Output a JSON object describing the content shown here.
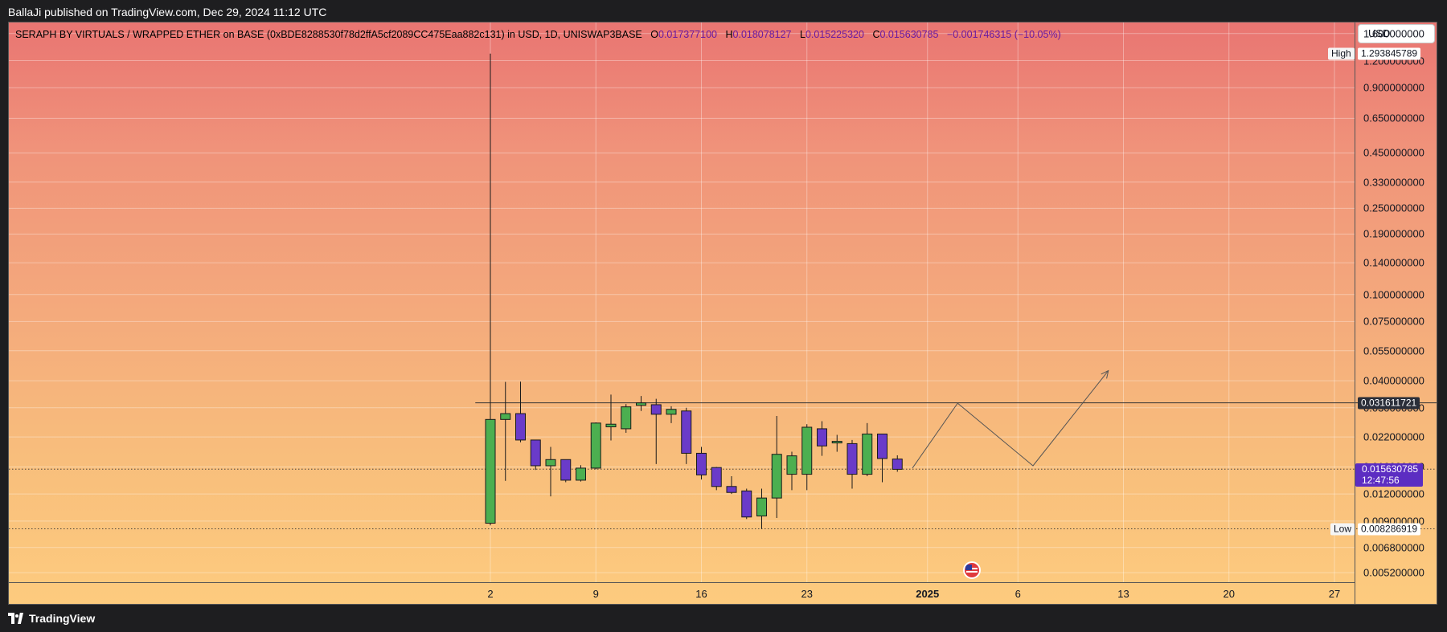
{
  "header": {
    "publish_line": "BallaJi published on TradingView.com, Dec 29, 2024 11:12 UTC"
  },
  "legend": {
    "title": "SERAPH BY VIRTUALS / WRAPPED ETHER on BASE (0xBDE8288530f78d2ffA5cf2089CC475Eaa882c131) in USD, 1D, UNISWAP3BASE",
    "o_label": "O",
    "o_value": "0.017377100",
    "h_label": "H",
    "h_value": "0.018078127",
    "l_label": "L",
    "l_value": "0.015225320",
    "c_label": "C",
    "c_value": "0.015630785",
    "change": "−0.001746315 (−10.05%)"
  },
  "currency": "USD",
  "colors": {
    "up": "#4caf50",
    "down": "#6a3bc9",
    "bg_top": "#e97572",
    "bg_bottom": "#fdcb7e",
    "price_badge": "#5c2dc2"
  },
  "badges": {
    "high_label": "High",
    "high_value": "1.293845789",
    "level_value": "0.031611721",
    "last_value": "0.015630785",
    "countdown": "12:47:56",
    "low_label": "Low",
    "low_value": "0.008286919"
  },
  "footer": {
    "brand": "TradingView"
  },
  "chart_data": {
    "type": "candlestick",
    "y_scale": "log",
    "ylim": [
      0.0047,
      1.8
    ],
    "price_ticks": [
      "1.600000000",
      "1.200000000",
      "0.900000000",
      "0.650000000",
      "0.450000000",
      "0.330000000",
      "0.250000000",
      "0.190000000",
      "0.140000000",
      "0.100000000",
      "0.075000000",
      "0.055000000",
      "0.040000000",
      "0.030000000",
      "0.022000000",
      "0.016000000",
      "0.012000000",
      "0.009000000",
      "0.006800000",
      "0.005200000"
    ],
    "price_tick_values": [
      1.6,
      1.2,
      0.9,
      0.65,
      0.45,
      0.33,
      0.25,
      0.19,
      0.14,
      0.1,
      0.075,
      0.055,
      0.04,
      0.03,
      0.022,
      0.016,
      0.012,
      0.009,
      0.0068,
      0.0052
    ],
    "time_ticks": [
      {
        "label": "2",
        "day": 2,
        "bold": false
      },
      {
        "label": "9",
        "day": 9,
        "bold": false
      },
      {
        "label": "16",
        "day": 16,
        "bold": false
      },
      {
        "label": "23",
        "day": 23,
        "bold": false
      },
      {
        "label": "2025",
        "day": 31,
        "bold": true
      },
      {
        "label": "6",
        "day": 37,
        "bold": false
      },
      {
        "label": "13",
        "day": 44,
        "bold": false
      },
      {
        "label": "20",
        "day": 51,
        "bold": false
      },
      {
        "label": "27",
        "day": 58,
        "bold": false
      }
    ],
    "candles": [
      {
        "date": "2024-12-02",
        "o": 0.0088,
        "h": 1.2938,
        "l": 0.0086,
        "c": 0.0265
      },
      {
        "date": "2024-12-03",
        "o": 0.0265,
        "h": 0.0395,
        "l": 0.0138,
        "c": 0.0282
      },
      {
        "date": "2024-12-04",
        "o": 0.0282,
        "h": 0.0396,
        "l": 0.0208,
        "c": 0.0213
      },
      {
        "date": "2024-12-05",
        "o": 0.0213,
        "h": 0.0213,
        "l": 0.0155,
        "c": 0.0162
      },
      {
        "date": "2024-12-06",
        "o": 0.0162,
        "h": 0.0198,
        "l": 0.0117,
        "c": 0.0173
      },
      {
        "date": "2024-12-07",
        "o": 0.0173,
        "h": 0.0173,
        "l": 0.0136,
        "c": 0.0139
      },
      {
        "date": "2024-12-08",
        "o": 0.0139,
        "h": 0.0163,
        "l": 0.0137,
        "c": 0.0158
      },
      {
        "date": "2024-12-09",
        "o": 0.0158,
        "h": 0.0257,
        "l": 0.0156,
        "c": 0.0255
      },
      {
        "date": "2024-12-10",
        "o": 0.0245,
        "h": 0.0345,
        "l": 0.0212,
        "c": 0.0252
      },
      {
        "date": "2024-12-11",
        "o": 0.024,
        "h": 0.0312,
        "l": 0.023,
        "c": 0.0303
      },
      {
        "date": "2024-12-12",
        "o": 0.0308,
        "h": 0.034,
        "l": 0.029,
        "c": 0.0316
      },
      {
        "date": "2024-12-13",
        "o": 0.031,
        "h": 0.033,
        "l": 0.0165,
        "c": 0.028
      },
      {
        "date": "2024-12-14",
        "o": 0.028,
        "h": 0.0305,
        "l": 0.0255,
        "c": 0.0295
      },
      {
        "date": "2024-12-15",
        "o": 0.029,
        "h": 0.03,
        "l": 0.0165,
        "c": 0.0185
      },
      {
        "date": "2024-12-16",
        "o": 0.0185,
        "h": 0.0198,
        "l": 0.014,
        "c": 0.0147
      },
      {
        "date": "2024-12-17",
        "o": 0.0159,
        "h": 0.016,
        "l": 0.0125,
        "c": 0.013
      },
      {
        "date": "2024-12-18",
        "o": 0.013,
        "h": 0.0145,
        "l": 0.012,
        "c": 0.0122
      },
      {
        "date": "2024-12-19",
        "o": 0.0124,
        "h": 0.0127,
        "l": 0.0092,
        "c": 0.0094
      },
      {
        "date": "2024-12-20",
        "o": 0.0095,
        "h": 0.0127,
        "l": 0.0083,
        "c": 0.0115
      },
      {
        "date": "2024-12-21",
        "o": 0.0115,
        "h": 0.0275,
        "l": 0.0093,
        "c": 0.0183
      },
      {
        "date": "2024-12-22",
        "o": 0.0148,
        "h": 0.0188,
        "l": 0.0125,
        "c": 0.018
      },
      {
        "date": "2024-12-23",
        "o": 0.0148,
        "h": 0.0252,
        "l": 0.0125,
        "c": 0.0244
      },
      {
        "date": "2024-12-24",
        "o": 0.024,
        "h": 0.026,
        "l": 0.018,
        "c": 0.02
      },
      {
        "date": "2024-12-25",
        "o": 0.0208,
        "h": 0.0225,
        "l": 0.0188,
        "c": 0.021
      },
      {
        "date": "2024-12-26",
        "o": 0.0205,
        "h": 0.0213,
        "l": 0.0127,
        "c": 0.0148
      },
      {
        "date": "2024-12-27",
        "o": 0.0148,
        "h": 0.0255,
        "l": 0.0145,
        "c": 0.0227
      },
      {
        "date": "2024-12-28",
        "o": 0.0227,
        "h": 0.0227,
        "l": 0.0136,
        "c": 0.0175
      },
      {
        "date": "2024-12-29",
        "o": 0.0174,
        "h": 0.0181,
        "l": 0.0152,
        "c": 0.0156
      }
    ],
    "horizontal_levels": [
      {
        "name": "resistance",
        "value": 0.031611721,
        "style": "solid",
        "from_date": "2024-12-01"
      },
      {
        "name": "last-price",
        "value": 0.015630785,
        "style": "dotted"
      },
      {
        "name": "low",
        "value": 0.008286919,
        "style": "dotted"
      }
    ],
    "projection_path": [
      {
        "date": "2024-12-30",
        "value": 0.0158
      },
      {
        "date": "2025-01-02",
        "value": 0.0315
      },
      {
        "date": "2025-01-07",
        "value": 0.0162
      },
      {
        "date": "2025-01-12",
        "value": 0.0445
      }
    ]
  }
}
